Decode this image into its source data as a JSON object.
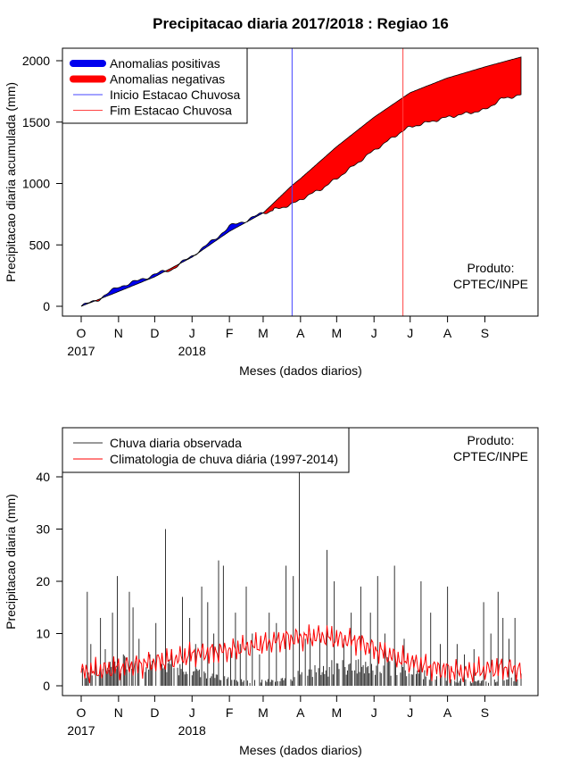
{
  "chart_data": [
    {
      "type": "area",
      "title": "Precipitacao diaria 2017/2018 : Regiao 16",
      "xlabel": "Meses (dados diarios)",
      "ylabel": "Precipitacao diaria acumulada (mm)",
      "ylim": [
        0,
        2000
      ],
      "yticks": [
        0,
        500,
        1000,
        1500,
        2000
      ],
      "xdays": 365,
      "month_ticks": [
        "O",
        "N",
        "D",
        "J",
        "F",
        "M",
        "A",
        "M",
        "J",
        "J",
        "A",
        "S"
      ],
      "month_start_days": [
        0,
        31,
        61,
        92,
        123,
        151,
        182,
        212,
        243,
        273,
        304,
        335
      ],
      "year_labels": [
        {
          "text": "2017",
          "day": 0
        },
        {
          "text": "2018",
          "day": 92
        }
      ],
      "legend": [
        {
          "label": "Anomalias positivas",
          "color": "#0000ee",
          "style": "thick"
        },
        {
          "label": "Anomalias negativas",
          "color": "#ff0000",
          "style": "thick"
        },
        {
          "label": "Inicio Estacao Chuvosa",
          "color": "#4444ff",
          "style": "thin"
        },
        {
          "label": "Fim Estacao Chuvosa",
          "color": "#ff4444",
          "style": "thin"
        }
      ],
      "credit": [
        "Produto:",
        "CPTEC/INPE"
      ],
      "season_start_day": 175,
      "season_end_day": 267,
      "climatology_cumulative": {
        "days": [
          0,
          31,
          61,
          92,
          123,
          151,
          175,
          182,
          212,
          243,
          267,
          273,
          304,
          335,
          365
        ],
        "values": [
          0,
          120,
          240,
          400,
          610,
          760,
          985,
          1040,
          1300,
          1540,
          1700,
          1740,
          1860,
          1950,
          2030
        ]
      },
      "observed_cumulative": {
        "days": [
          0,
          15,
          31,
          45,
          61,
          75,
          92,
          110,
          123,
          137,
          151,
          175,
          182,
          200,
          212,
          243,
          267,
          273,
          304,
          335,
          349,
          365
        ],
        "values": [
          0,
          60,
          160,
          200,
          260,
          300,
          410,
          540,
          650,
          700,
          760,
          830,
          870,
          960,
          1040,
          1270,
          1430,
          1460,
          1540,
          1600,
          1690,
          1720
        ]
      }
    },
    {
      "type": "line",
      "xlabel": "Meses (dados diarios)",
      "ylabel": "Precipitacao diaria (mm)",
      "ylim": [
        0,
        40
      ],
      "yticks": [
        0,
        10,
        20,
        30,
        40
      ],
      "xdays": 365,
      "month_ticks": [
        "O",
        "N",
        "D",
        "J",
        "F",
        "M",
        "A",
        "M",
        "J",
        "J",
        "A",
        "S"
      ],
      "month_start_days": [
        0,
        31,
        61,
        92,
        123,
        151,
        182,
        212,
        243,
        273,
        304,
        335
      ],
      "year_labels": [
        {
          "text": "2017",
          "day": 0
        },
        {
          "text": "2018",
          "day": 92
        }
      ],
      "legend": [
        {
          "label": "Chuva diaria observada",
          "color": "#333333"
        },
        {
          "label": "Climatologia de chuva diária (1997-2014)",
          "color": "#ff0000"
        }
      ],
      "credit": [
        "Produto:",
        "CPTEC/INPE"
      ],
      "observed_daily_peaks": {
        "days": [
          5,
          8,
          12,
          16,
          20,
          26,
          30,
          35,
          40,
          43,
          48,
          57,
          62,
          70,
          75,
          84,
          90,
          95,
          100,
          105,
          110,
          114,
          118,
          124,
          128,
          132,
          137,
          142,
          148,
          156,
          162,
          170,
          176,
          181,
          186,
          190,
          198,
          204,
          210,
          218,
          224,
          232,
          240,
          246,
          252,
          260,
          268,
          276,
          282,
          290,
          298,
          304,
          312,
          318,
          326,
          334,
          340,
          346,
          350,
          355,
          360
        ],
        "values": [
          18,
          8,
          5,
          13,
          7,
          14,
          21,
          6,
          18,
          15,
          9,
          6,
          12,
          30,
          7,
          17,
          13,
          8,
          19,
          16,
          10,
          24,
          23,
          7,
          14,
          8,
          19,
          10,
          6,
          14,
          12,
          23,
          21,
          43,
          9,
          10,
          10,
          26,
          20,
          9,
          14,
          19,
          14,
          21,
          10,
          23,
          9,
          5,
          20,
          14,
          8,
          19,
          8,
          6,
          7,
          16,
          10,
          18,
          13,
          9,
          13
        ]
      },
      "climatology_daily": {
        "days": [
          0,
          20,
          40,
          61,
          80,
          92,
          110,
          123,
          140,
          151,
          170,
          182,
          200,
          212,
          230,
          243,
          260,
          273,
          290,
          304,
          320,
          335,
          350,
          365
        ],
        "values": [
          2.5,
          3.0,
          3.8,
          4.5,
          5.2,
          6.0,
          6.5,
          6.8,
          7.5,
          8.0,
          9.0,
          9.2,
          9.5,
          9.0,
          8.5,
          7.0,
          5.5,
          4.5,
          3.5,
          3.0,
          2.5,
          3.0,
          3.5,
          3.0
        ]
      }
    }
  ]
}
